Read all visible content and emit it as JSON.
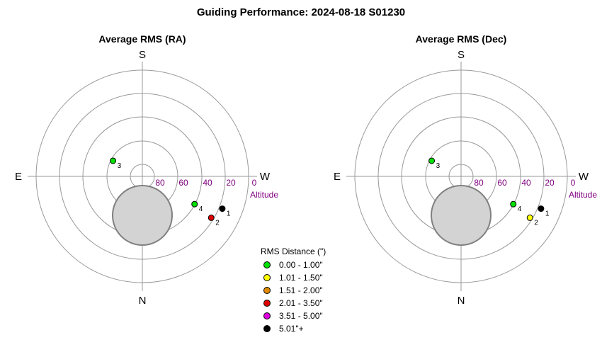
{
  "title": "Guiding Performance: 2024-08-18 S01230",
  "chart_data": [
    {
      "type": "scatter",
      "subtype": "polar-sky",
      "title": "Average RMS (RA)",
      "directions": {
        "top": "S",
        "bottom": "N",
        "left": "E",
        "right": "W"
      },
      "altitude_label": "Altitude",
      "altitude_ticks": [
        "80",
        "60",
        "40",
        "20",
        "0"
      ],
      "altitude_range": [
        0,
        90
      ],
      "points": [
        {
          "label": "1",
          "azimuth": 292,
          "altitude": 17,
          "rms_bin": "5.01\"+"
        },
        {
          "label": "2",
          "azimuth": 301,
          "altitude": 22,
          "rms_bin": "2.01 - 3.50\""
        },
        {
          "label": "3",
          "azimuth": 118,
          "altitude": 62,
          "rms_bin": "0.00 - 1.00\""
        },
        {
          "label": "4",
          "azimuth": 298,
          "altitude": 40,
          "rms_bin": "0.00 - 1.00\""
        }
      ]
    },
    {
      "type": "scatter",
      "subtype": "polar-sky",
      "title": "Average RMS (Dec)",
      "directions": {
        "top": "S",
        "bottom": "N",
        "left": "E",
        "right": "W"
      },
      "altitude_label": "Altitude",
      "altitude_ticks": [
        "80",
        "60",
        "40",
        "20",
        "0"
      ],
      "altitude_range": [
        0,
        90
      ],
      "points": [
        {
          "label": "1",
          "azimuth": 292,
          "altitude": 17,
          "rms_bin": "5.01\"+"
        },
        {
          "label": "2",
          "azimuth": 301,
          "altitude": 22,
          "rms_bin": "1.01 - 1.50\""
        },
        {
          "label": "3",
          "azimuth": 118,
          "altitude": 62,
          "rms_bin": "0.00 - 1.00\""
        },
        {
          "label": "4",
          "azimuth": 298,
          "altitude": 40,
          "rms_bin": "0.00 - 1.00\""
        }
      ]
    }
  ],
  "legend": {
    "title": "RMS Distance (\")",
    "items": [
      {
        "label": "0.00 - 1.00\"",
        "color": "#00e000"
      },
      {
        "label": "1.01 - 1.50\"",
        "color": "#ffff00"
      },
      {
        "label": "1.51 - 2.00\"",
        "color": "#e08a00"
      },
      {
        "label": "2.01 - 3.50\"",
        "color": "#e00000"
      },
      {
        "label": "3.51 - 5.00\"",
        "color": "#e000e0"
      },
      {
        "label": "5.01\"+",
        "color": "#000000"
      }
    ]
  },
  "colors": {
    "grid": "#999999",
    "altitude_text": "#800080",
    "zenith_fill": "#d3d3d3",
    "zenith_stroke": "#808080"
  }
}
